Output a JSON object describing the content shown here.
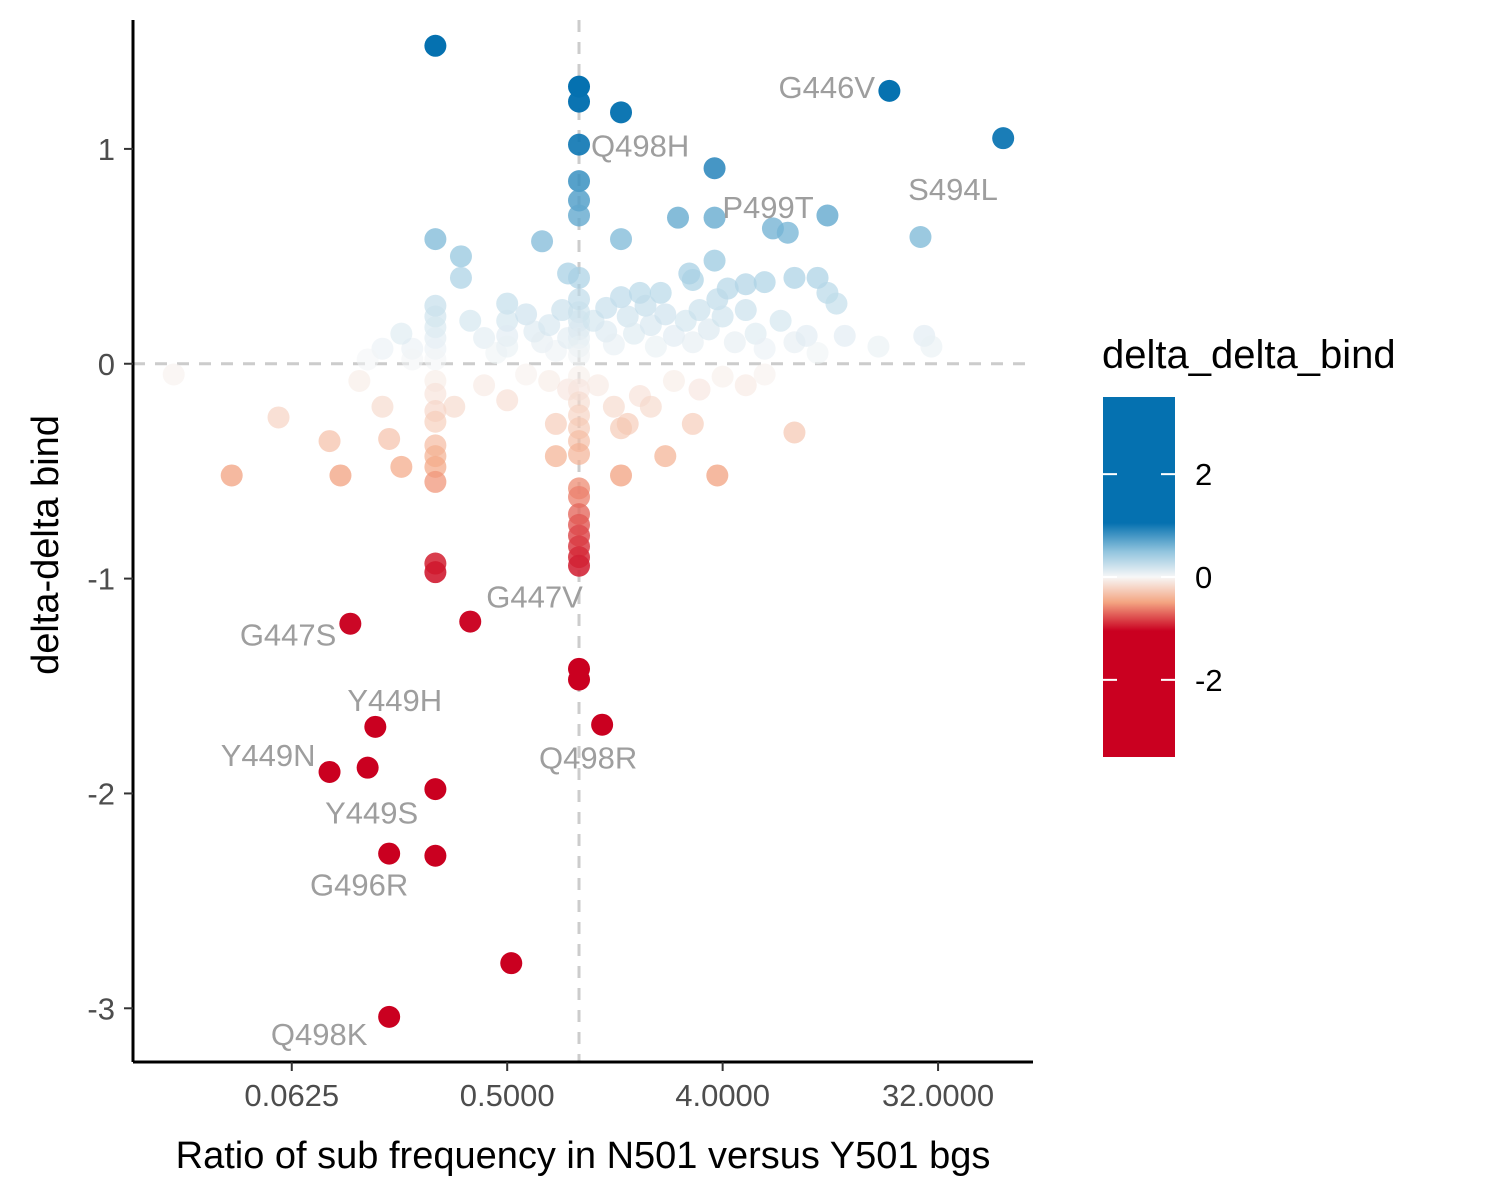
{
  "chart_data": {
    "type": "scatter",
    "title": "",
    "xlabel": "Ratio of sub frequency in N501 versus Y501 bgs",
    "ylabel": "delta-delta bind",
    "x_scale": "log2",
    "xlim": [
      0.0135,
      80.0
    ],
    "ylim": [
      -3.25,
      1.6
    ],
    "x_ticks": [
      {
        "value": 0.0625,
        "label": "0.0625"
      },
      {
        "value": 0.5,
        "label": "0.5000"
      },
      {
        "value": 4,
        "label": "4.0000"
      },
      {
        "value": 32,
        "label": "32.0000"
      }
    ],
    "y_ticks": [
      {
        "value": 1,
        "label": "1"
      },
      {
        "value": 0,
        "label": "0"
      },
      {
        "value": -1,
        "label": "-1"
      },
      {
        "value": -2,
        "label": "-2"
      },
      {
        "value": -3,
        "label": "-3"
      }
    ],
    "reference_lines": {
      "x": 1.0,
      "y": 0.0
    },
    "grid": false,
    "legend": {
      "title": "delta_delta_bind",
      "type": "colorbar",
      "placement": "right",
      "range": [
        -3.5,
        3.5
      ],
      "ticks": [
        {
          "value": 2,
          "label": "2"
        },
        {
          "value": 0,
          "label": "0"
        },
        {
          "value": -2,
          "label": "-2"
        }
      ],
      "colors": {
        "low": "#ca0020",
        "mid_low": "#f4a582",
        "mid": "#f7f7f7",
        "mid_high": "#92c5de",
        "high": "#0571b0"
      }
    },
    "points": [
      [
        0.25,
        1.48
      ],
      [
        1,
        1.29
      ],
      [
        1,
        1.22
      ],
      [
        1.5,
        1.17
      ],
      [
        20,
        1.27
      ],
      [
        60,
        1.05
      ],
      [
        1,
        1.02
      ],
      [
        3.7,
        0.91
      ],
      [
        1,
        0.85
      ],
      [
        1,
        0.76
      ],
      [
        1,
        0.69
      ],
      [
        2.6,
        0.68
      ],
      [
        3.7,
        0.68
      ],
      [
        6.5,
        0.63
      ],
      [
        7.5,
        0.61
      ],
      [
        11,
        0.69
      ],
      [
        27,
        0.59
      ],
      [
        0.25,
        0.58
      ],
      [
        0.7,
        0.57
      ],
      [
        1.5,
        0.58
      ],
      [
        0.32,
        0.5
      ],
      [
        0.32,
        0.4
      ],
      [
        3.7,
        0.48
      ],
      [
        0.9,
        0.42
      ],
      [
        1,
        0.4
      ],
      [
        2.9,
        0.42
      ],
      [
        3,
        0.39
      ],
      [
        5,
        0.37
      ],
      [
        6,
        0.38
      ],
      [
        8,
        0.4
      ],
      [
        10,
        0.4
      ],
      [
        11,
        0.33
      ],
      [
        12,
        0.28
      ],
      [
        4.2,
        0.35
      ],
      [
        3.8,
        0.3
      ],
      [
        2.2,
        0.33
      ],
      [
        1.8,
        0.33
      ],
      [
        1.5,
        0.31
      ],
      [
        0.25,
        0.27
      ],
      [
        0.25,
        0.22
      ],
      [
        0.25,
        0.17
      ],
      [
        0.25,
        0.12
      ],
      [
        0.25,
        0.07
      ],
      [
        0.25,
        0.02
      ],
      [
        0.35,
        0.2
      ],
      [
        0.4,
        0.12
      ],
      [
        0.45,
        0.05
      ],
      [
        0.5,
        0.28
      ],
      [
        0.5,
        0.2
      ],
      [
        0.5,
        0.13
      ],
      [
        0.5,
        0.08
      ],
      [
        0.6,
        0.23
      ],
      [
        0.65,
        0.15
      ],
      [
        0.7,
        0.1
      ],
      [
        0.75,
        0.18
      ],
      [
        0.8,
        0.06
      ],
      [
        0.85,
        0.25
      ],
      [
        0.9,
        0.12
      ],
      [
        1,
        0.3
      ],
      [
        1,
        0.24
      ],
      [
        1,
        0.2
      ],
      [
        1,
        0.16
      ],
      [
        1,
        0.12
      ],
      [
        1,
        0.08
      ],
      [
        1,
        0.04
      ],
      [
        1.15,
        0.2
      ],
      [
        1.3,
        0.26
      ],
      [
        1.3,
        0.15
      ],
      [
        1.4,
        0.09
      ],
      [
        1.6,
        0.22
      ],
      [
        1.7,
        0.14
      ],
      [
        1.9,
        0.27
      ],
      [
        2,
        0.18
      ],
      [
        2.1,
        0.08
      ],
      [
        2.3,
        0.23
      ],
      [
        2.5,
        0.13
      ],
      [
        2.8,
        0.2
      ],
      [
        3,
        0.1
      ],
      [
        3.2,
        0.25
      ],
      [
        3.5,
        0.16
      ],
      [
        4,
        0.22
      ],
      [
        4.5,
        0.1
      ],
      [
        5,
        0.25
      ],
      [
        5.5,
        0.14
      ],
      [
        6,
        0.07
      ],
      [
        7,
        0.2
      ],
      [
        8,
        0.1
      ],
      [
        9,
        0.13
      ],
      [
        10,
        0.05
      ],
      [
        13,
        0.13
      ],
      [
        18,
        0.08
      ],
      [
        28,
        0.13
      ],
      [
        30,
        0.08
      ],
      [
        0.2,
        0.07
      ],
      [
        0.2,
        0.02
      ],
      [
        0.18,
        0.14
      ],
      [
        0.15,
        0.07
      ],
      [
        0.13,
        0.02
      ],
      [
        0.02,
        -0.05
      ],
      [
        0.12,
        -0.08
      ],
      [
        0.15,
        -0.2
      ],
      [
        0.3,
        -0.2
      ],
      [
        0.4,
        -0.1
      ],
      [
        0.5,
        -0.17
      ],
      [
        0.6,
        -0.05
      ],
      [
        0.75,
        -0.08
      ],
      [
        0.9,
        -0.12
      ],
      [
        1,
        -0.06
      ],
      [
        1,
        -0.12
      ],
      [
        1,
        -0.18
      ],
      [
        1,
        -0.24
      ],
      [
        1.2,
        -0.1
      ],
      [
        1.4,
        -0.2
      ],
      [
        1.6,
        -0.28
      ],
      [
        1.8,
        -0.15
      ],
      [
        2,
        -0.2
      ],
      [
        2.5,
        -0.08
      ],
      [
        3.2,
        -0.12
      ],
      [
        4,
        -0.06
      ],
      [
        5,
        -0.1
      ],
      [
        6,
        -0.05
      ],
      [
        0.25,
        -0.08
      ],
      [
        0.25,
        -0.14
      ],
      [
        0.25,
        -0.22
      ],
      [
        0.25,
        -0.27
      ],
      [
        0.25,
        -0.38
      ],
      [
        0.25,
        -0.43
      ],
      [
        0.25,
        -0.48
      ],
      [
        0.25,
        -0.55
      ],
      [
        0.055,
        -0.25
      ],
      [
        0.09,
        -0.36
      ],
      [
        0.16,
        -0.35
      ],
      [
        0.18,
        -0.48
      ],
      [
        0.035,
        -0.52
      ],
      [
        0.1,
        -0.52
      ],
      [
        0.8,
        -0.28
      ],
      [
        0.8,
        -0.43
      ],
      [
        1,
        -0.3
      ],
      [
        1,
        -0.36
      ],
      [
        1,
        -0.42
      ],
      [
        1.5,
        -0.3
      ],
      [
        1.5,
        -0.52
      ],
      [
        2.3,
        -0.43
      ],
      [
        3,
        -0.28
      ],
      [
        3.8,
        -0.52
      ],
      [
        8,
        -0.32
      ],
      [
        1,
        -0.58
      ],
      [
        1,
        -0.62
      ],
      [
        1,
        -0.7
      ],
      [
        1,
        -0.75
      ],
      [
        1,
        -0.8
      ],
      [
        1,
        -0.85
      ],
      [
        1,
        -0.9
      ],
      [
        1,
        -0.94
      ],
      [
        0.25,
        -0.93
      ],
      [
        0.25,
        -0.97
      ],
      [
        0.11,
        -1.21
      ],
      [
        0.35,
        -1.2
      ],
      [
        1,
        -1.42
      ],
      [
        1,
        -1.47
      ],
      [
        1.25,
        -1.68
      ],
      [
        0.14,
        -1.69
      ],
      [
        0.09,
        -1.9
      ],
      [
        0.13,
        -1.88
      ],
      [
        0.25,
        -1.98
      ],
      [
        0.16,
        -2.28
      ],
      [
        0.25,
        -2.29
      ],
      [
        0.52,
        -2.79
      ],
      [
        0.16,
        -3.04
      ]
    ],
    "annotations": [
      {
        "text": "G446V",
        "x": 20,
        "y": 1.27
      },
      {
        "text": "S494L",
        "x": 60,
        "y": 1.05
      },
      {
        "text": "Q498H",
        "x": 1,
        "y": 1.02
      },
      {
        "text": "P499T",
        "x": 3.7,
        "y": 0.91
      },
      {
        "text": "G447V",
        "x": 0.35,
        "y": -1.2
      },
      {
        "text": "G447S",
        "x": 0.11,
        "y": -1.21
      },
      {
        "text": "Y449H",
        "x": 0.14,
        "y": -1.69
      },
      {
        "text": "Q498R",
        "x": 1.25,
        "y": -1.68
      },
      {
        "text": "Y449N",
        "x": 0.09,
        "y": -1.9
      },
      {
        "text": "Y449S",
        "x": 0.13,
        "y": -1.88
      },
      {
        "text": "G496R",
        "x": 0.16,
        "y": -2.28
      },
      {
        "text": "Q498K",
        "x": 0.16,
        "y": -3.04
      }
    ]
  }
}
